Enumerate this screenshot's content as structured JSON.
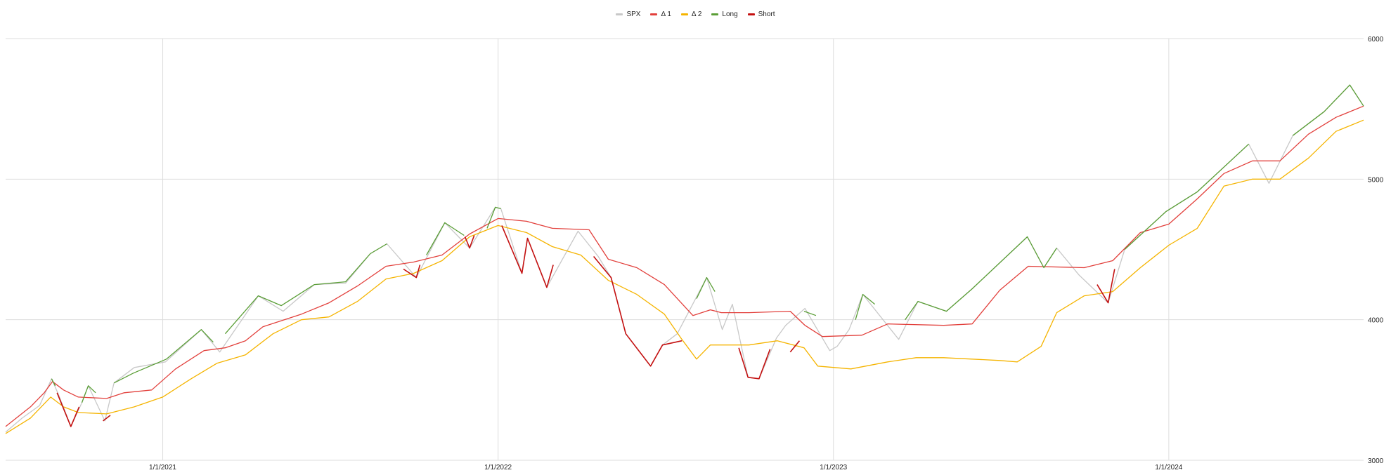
{
  "chart_data": {
    "type": "line",
    "title": "",
    "xlabel": "",
    "ylabel": "",
    "x_ticks": [
      "1/1/2021",
      "1/1/2022",
      "1/1/2023",
      "1/1/2024"
    ],
    "x_range": [
      "2020-07-14",
      "2024-07-31"
    ],
    "y_ticks": [
      "3000",
      "4000",
      "5000",
      "6000"
    ],
    "ylim": [
      3000,
      6000
    ],
    "grid": true,
    "legend_position": "top-center",
    "legend": [
      {
        "label": "SPX",
        "color": "#c8c8c8"
      },
      {
        "label": "Δ 1",
        "color": "#e2403c"
      },
      {
        "label": "Δ 2",
        "color": "#f5b400"
      },
      {
        "label": "Long",
        "color": "#5a9e36"
      },
      {
        "label": "Short",
        "color": "#c41010"
      }
    ],
    "series": [
      {
        "name": "SPX",
        "color": "#c8c8c8",
        "points": [
          [
            "2020-07-14",
            3200
          ],
          [
            "2020-08-01",
            3300
          ],
          [
            "2020-08-20",
            3390
          ],
          [
            "2020-09-02",
            3580
          ],
          [
            "2020-09-10",
            3460
          ],
          [
            "2020-09-23",
            3240
          ],
          [
            "2020-10-05",
            3410
          ],
          [
            "2020-10-12",
            3530
          ],
          [
            "2020-10-30",
            3280
          ],
          [
            "2020-11-09",
            3550
          ],
          [
            "2020-12-01",
            3660
          ],
          [
            "2021-01-04",
            3700
          ],
          [
            "2021-02-12",
            3930
          ],
          [
            "2021-03-04",
            3770
          ],
          [
            "2021-04-15",
            4170
          ],
          [
            "2021-05-12",
            4060
          ],
          [
            "2021-06-15",
            4250
          ],
          [
            "2021-07-19",
            4260
          ],
          [
            "2021-08-15",
            4470
          ],
          [
            "2021-09-02",
            4540
          ],
          [
            "2021-10-04",
            4300
          ],
          [
            "2021-11-04",
            4690
          ],
          [
            "2021-12-01",
            4510
          ],
          [
            "2021-12-29",
            4800
          ],
          [
            "2022-01-04",
            4790
          ],
          [
            "2022-01-27",
            4330
          ],
          [
            "2022-02-02",
            4580
          ],
          [
            "2022-02-23",
            4230
          ],
          [
            "2022-03-29",
            4630
          ],
          [
            "2022-04-20",
            4450
          ],
          [
            "2022-05-04",
            4300
          ],
          [
            "2022-05-20",
            3900
          ],
          [
            "2022-06-16",
            3670
          ],
          [
            "2022-06-29",
            3820
          ],
          [
            "2022-07-15",
            3900
          ],
          [
            "2022-08-16",
            4300
          ],
          [
            "2022-09-02",
            3930
          ],
          [
            "2022-09-13",
            4110
          ],
          [
            "2022-09-30",
            3590
          ],
          [
            "2022-10-12",
            3580
          ],
          [
            "2022-10-31",
            3870
          ],
          [
            "2022-11-10",
            3960
          ],
          [
            "2022-12-01",
            4080
          ],
          [
            "2022-12-28",
            3780
          ],
          [
            "2023-01-05",
            3810
          ],
          [
            "2023-01-18",
            3930
          ],
          [
            "2023-02-02",
            4180
          ],
          [
            "2023-03-13",
            3860
          ],
          [
            "2023-04-03",
            4130
          ],
          [
            "2023-05-04",
            4060
          ],
          [
            "2023-06-01",
            4220
          ],
          [
            "2023-07-31",
            4590
          ],
          [
            "2023-08-18",
            4370
          ],
          [
            "2023-09-01",
            4510
          ],
          [
            "2023-09-25",
            4320
          ],
          [
            "2023-10-27",
            4120
          ],
          [
            "2023-11-14",
            4500
          ],
          [
            "2023-12-29",
            4770
          ],
          [
            "2024-02-01",
            4910
          ],
          [
            "2024-03-28",
            5250
          ],
          [
            "2024-04-19",
            4970
          ],
          [
            "2024-05-15",
            5310
          ],
          [
            "2024-06-18",
            5480
          ],
          [
            "2024-07-16",
            5670
          ],
          [
            "2024-07-31",
            5520
          ]
        ]
      },
      {
        "name": "Δ 1",
        "color": "#e2403c",
        "points": [
          [
            "2020-07-14",
            3240
          ],
          [
            "2020-08-10",
            3380
          ],
          [
            "2020-08-25",
            3480
          ],
          [
            "2020-09-03",
            3560
          ],
          [
            "2020-09-15",
            3500
          ],
          [
            "2020-10-01",
            3450
          ],
          [
            "2020-11-01",
            3440
          ],
          [
            "2020-11-20",
            3480
          ],
          [
            "2020-12-20",
            3500
          ],
          [
            "2021-01-15",
            3650
          ],
          [
            "2021-02-15",
            3780
          ],
          [
            "2021-03-10",
            3800
          ],
          [
            "2021-04-01",
            3850
          ],
          [
            "2021-04-20",
            3950
          ],
          [
            "2021-06-01",
            4040
          ],
          [
            "2021-07-01",
            4120
          ],
          [
            "2021-08-01",
            4240
          ],
          [
            "2021-09-01",
            4380
          ],
          [
            "2021-10-01",
            4410
          ],
          [
            "2021-11-01",
            4460
          ],
          [
            "2021-12-01",
            4610
          ],
          [
            "2022-01-01",
            4720
          ],
          [
            "2022-02-01",
            4700
          ],
          [
            "2022-03-01",
            4650
          ],
          [
            "2022-04-10",
            4640
          ],
          [
            "2022-05-01",
            4430
          ],
          [
            "2022-06-01",
            4370
          ],
          [
            "2022-07-01",
            4250
          ],
          [
            "2022-08-01",
            4030
          ],
          [
            "2022-08-20",
            4070
          ],
          [
            "2022-09-01",
            4050
          ],
          [
            "2022-10-01",
            4050
          ],
          [
            "2022-11-15",
            4060
          ],
          [
            "2022-12-01",
            3960
          ],
          [
            "2022-12-20",
            3880
          ],
          [
            "2023-02-01",
            3890
          ],
          [
            "2023-03-01",
            3970
          ],
          [
            "2023-05-01",
            3960
          ],
          [
            "2023-06-01",
            3970
          ],
          [
            "2023-07-01",
            4210
          ],
          [
            "2023-08-01",
            4380
          ],
          [
            "2023-10-01",
            4370
          ],
          [
            "2023-11-01",
            4420
          ],
          [
            "2023-12-01",
            4620
          ],
          [
            "2024-01-01",
            4680
          ],
          [
            "2024-02-01",
            4860
          ],
          [
            "2024-03-01",
            5040
          ],
          [
            "2024-04-01",
            5130
          ],
          [
            "2024-05-01",
            5130
          ],
          [
            "2024-06-01",
            5320
          ],
          [
            "2024-07-01",
            5440
          ],
          [
            "2024-07-31",
            5520
          ]
        ]
      },
      {
        "name": "Δ 2",
        "color": "#f5b400",
        "points": [
          [
            "2020-07-14",
            3190
          ],
          [
            "2020-08-10",
            3300
          ],
          [
            "2020-09-01",
            3450
          ],
          [
            "2020-09-15",
            3380
          ],
          [
            "2020-10-01",
            3340
          ],
          [
            "2020-11-01",
            3330
          ],
          [
            "2020-12-01",
            3380
          ],
          [
            "2021-01-01",
            3450
          ],
          [
            "2021-02-01",
            3580
          ],
          [
            "2021-03-01",
            3690
          ],
          [
            "2021-04-01",
            3750
          ],
          [
            "2021-05-01",
            3900
          ],
          [
            "2021-06-01",
            4000
          ],
          [
            "2021-07-01",
            4020
          ],
          [
            "2021-08-01",
            4130
          ],
          [
            "2021-09-01",
            4290
          ],
          [
            "2021-10-01",
            4330
          ],
          [
            "2021-11-01",
            4420
          ],
          [
            "2021-12-01",
            4590
          ],
          [
            "2022-01-01",
            4670
          ],
          [
            "2022-02-01",
            4620
          ],
          [
            "2022-03-01",
            4520
          ],
          [
            "2022-04-01",
            4460
          ],
          [
            "2022-05-01",
            4280
          ],
          [
            "2022-06-01",
            4180
          ],
          [
            "2022-07-01",
            4040
          ],
          [
            "2022-07-20",
            3860
          ],
          [
            "2022-08-05",
            3720
          ],
          [
            "2022-08-20",
            3820
          ],
          [
            "2022-10-01",
            3820
          ],
          [
            "2022-11-01",
            3850
          ],
          [
            "2022-11-30",
            3800
          ],
          [
            "2022-12-15",
            3670
          ],
          [
            "2023-01-20",
            3650
          ],
          [
            "2023-03-01",
            3700
          ],
          [
            "2023-04-01",
            3730
          ],
          [
            "2023-05-01",
            3730
          ],
          [
            "2023-07-01",
            3710
          ],
          [
            "2023-07-20",
            3700
          ],
          [
            "2023-08-15",
            3810
          ],
          [
            "2023-09-01",
            4050
          ],
          [
            "2023-10-01",
            4170
          ],
          [
            "2023-11-01",
            4200
          ],
          [
            "2023-12-01",
            4370
          ],
          [
            "2024-01-01",
            4530
          ],
          [
            "2024-02-01",
            4650
          ],
          [
            "2024-03-01",
            4950
          ],
          [
            "2024-04-01",
            5000
          ],
          [
            "2024-05-01",
            5000
          ],
          [
            "2024-06-01",
            5150
          ],
          [
            "2024-07-01",
            5340
          ],
          [
            "2024-07-31",
            5420
          ]
        ]
      },
      {
        "name": "Long",
        "color": "#5a9e36",
        "segments": [
          [
            [
              "2020-09-02",
              3580
            ],
            [
              "2020-09-06",
              3530
            ]
          ],
          [
            [
              "2020-10-05",
              3410
            ],
            [
              "2020-10-12",
              3530
            ],
            [
              "2020-10-20",
              3480
            ]
          ],
          [
            [
              "2020-11-09",
              3550
            ],
            [
              "2020-11-30",
              3620
            ],
            [
              "2021-01-05",
              3720
            ],
            [
              "2021-02-12",
              3930
            ],
            [
              "2021-02-25",
              3840
            ]
          ],
          [
            [
              "2021-03-10",
              3900
            ],
            [
              "2021-04-15",
              4170
            ],
            [
              "2021-05-10",
              4100
            ],
            [
              "2021-06-15",
              4250
            ],
            [
              "2021-07-19",
              4270
            ],
            [
              "2021-08-15",
              4470
            ],
            [
              "2021-09-02",
              4540
            ]
          ],
          [
            [
              "2021-10-15",
              4460
            ],
            [
              "2021-11-04",
              4690
            ],
            [
              "2021-11-25",
              4600
            ]
          ],
          [
            [
              "2021-12-20",
              4650
            ],
            [
              "2021-12-29",
              4800
            ],
            [
              "2022-01-04",
              4790
            ]
          ],
          [
            [
              "2022-08-05",
              4150
            ],
            [
              "2022-08-16",
              4300
            ],
            [
              "2022-08-25",
              4200
            ]
          ],
          [
            [
              "2022-11-30",
              4060
            ],
            [
              "2022-12-13",
              4030
            ]
          ],
          [
            [
              "2023-01-25",
              4000
            ],
            [
              "2023-02-02",
              4180
            ],
            [
              "2023-02-15",
              4110
            ]
          ],
          [
            [
              "2023-03-20",
              4000
            ],
            [
              "2023-04-03",
              4130
            ],
            [
              "2023-05-04",
              4060
            ],
            [
              "2023-06-01",
              4220
            ],
            [
              "2023-07-31",
              4590
            ],
            [
              "2023-08-18",
              4370
            ],
            [
              "2023-09-01",
              4510
            ]
          ],
          [
            [
              "2023-11-14",
              4500
            ],
            [
              "2023-12-29",
              4770
            ],
            [
              "2024-02-01",
              4910
            ],
            [
              "2024-03-28",
              5250
            ]
          ],
          [
            [
              "2024-05-15",
              5310
            ],
            [
              "2024-06-18",
              5480
            ],
            [
              "2024-07-16",
              5670
            ],
            [
              "2024-07-31",
              5520
            ]
          ]
        ]
      },
      {
        "name": "Short",
        "color": "#c41010",
        "segments": [
          [
            [
              "2020-09-08",
              3480
            ],
            [
              "2020-09-23",
              3240
            ],
            [
              "2020-10-02",
              3380
            ]
          ],
          [
            [
              "2020-10-28",
              3280
            ],
            [
              "2020-11-05",
              3320
            ]
          ],
          [
            [
              "2021-09-20",
              4360
            ],
            [
              "2021-10-04",
              4300
            ],
            [
              "2021-10-08",
              4390
            ]
          ],
          [
            [
              "2021-11-26",
              4590
            ],
            [
              "2021-12-01",
              4510
            ],
            [
              "2021-12-06",
              4600
            ]
          ],
          [
            [
              "2022-01-05",
              4670
            ],
            [
              "2022-01-27",
              4330
            ],
            [
              "2022-02-02",
              4580
            ],
            [
              "2022-02-23",
              4230
            ],
            [
              "2022-03-02",
              4390
            ]
          ],
          [
            [
              "2022-04-15",
              4450
            ],
            [
              "2022-05-04",
              4300
            ],
            [
              "2022-05-20",
              3900
            ],
            [
              "2022-06-16",
              3670
            ],
            [
              "2022-06-29",
              3820
            ],
            [
              "2022-07-20",
              3850
            ]
          ],
          [
            [
              "2022-09-20",
              3800
            ],
            [
              "2022-09-30",
              3590
            ],
            [
              "2022-10-12",
              3580
            ],
            [
              "2022-10-24",
              3790
            ]
          ],
          [
            [
              "2022-11-15",
              3770
            ],
            [
              "2022-11-25",
              3850
            ]
          ],
          [
            [
              "2023-10-15",
              4250
            ],
            [
              "2023-10-27",
              4120
            ],
            [
              "2023-11-03",
              4360
            ]
          ]
        ]
      }
    ]
  }
}
